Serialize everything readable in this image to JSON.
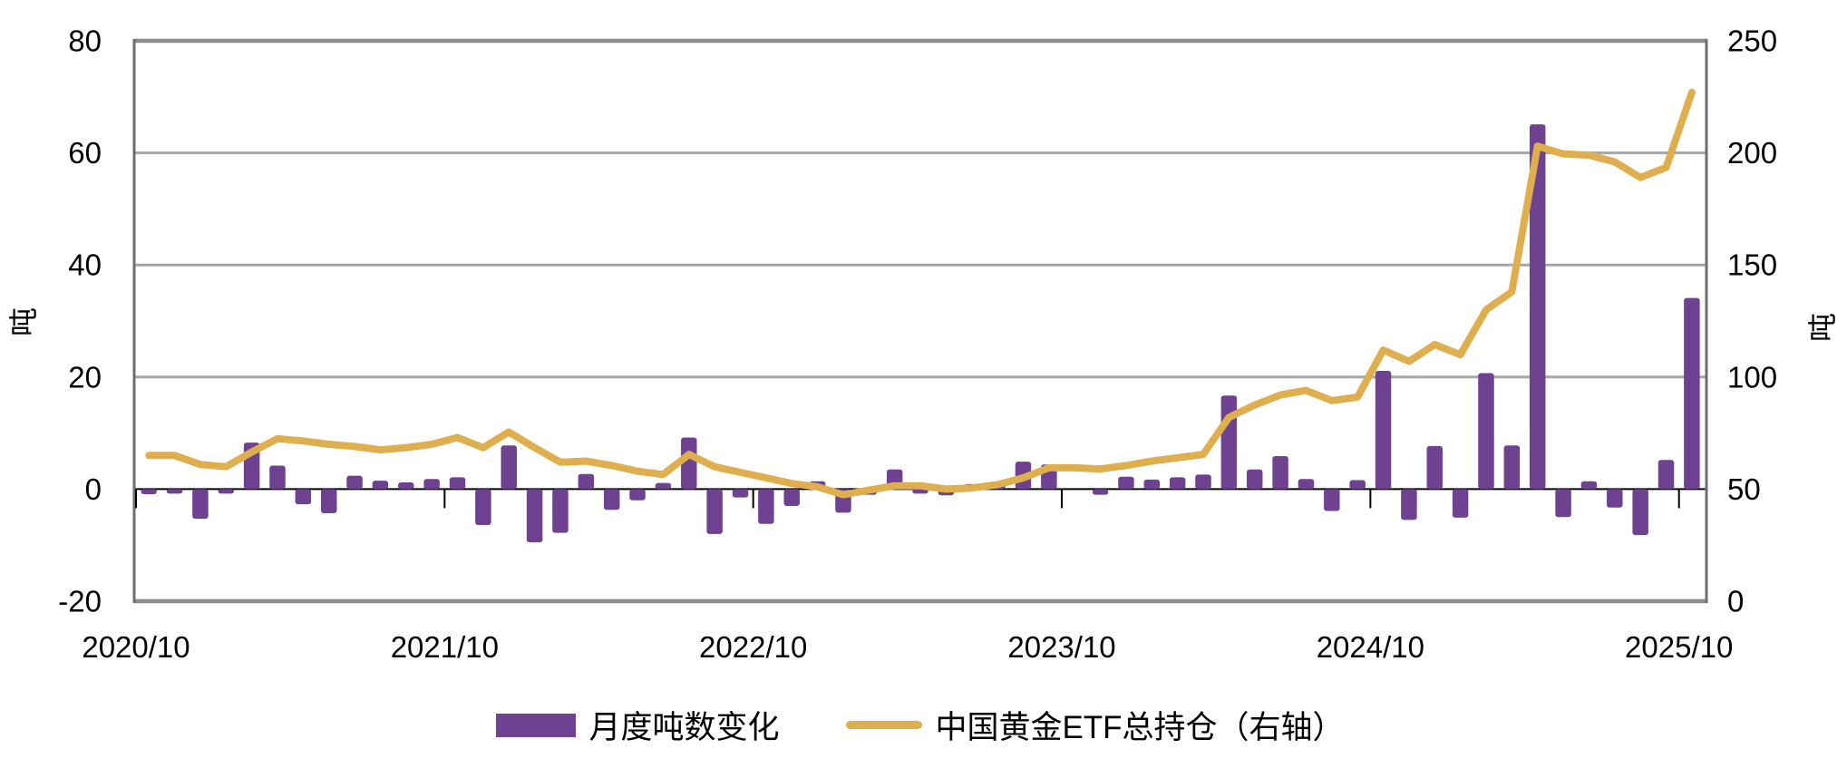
{
  "chart_data": {
    "type": "combo-bar-line",
    "categories": [
      "2020/10",
      "2020/11",
      "2020/12",
      "2021/01",
      "2021/02",
      "2021/03",
      "2021/04",
      "2021/05",
      "2021/06",
      "2021/07",
      "2021/08",
      "2021/09",
      "2021/10",
      "2021/11",
      "2021/12",
      "2022/01",
      "2022/02",
      "2022/03",
      "2022/04",
      "2022/05",
      "2022/06",
      "2022/07",
      "2022/08",
      "2022/09",
      "2022/10",
      "2022/11",
      "2022/12",
      "2023/01",
      "2023/02",
      "2023/03",
      "2023/04",
      "2023/05",
      "2023/06",
      "2023/07",
      "2023/08",
      "2023/09",
      "2023/10",
      "2023/11",
      "2023/12",
      "2024/01",
      "2024/02",
      "2024/03",
      "2024/04",
      "2024/05",
      "2024/06",
      "2024/07",
      "2024/08",
      "2024/09",
      "2024/10",
      "2024/11",
      "2024/12",
      "2025/01",
      "2025/02",
      "2025/03",
      "2025/04",
      "2025/05",
      "2025/06",
      "2025/07",
      "2025/08",
      "2025/09",
      "2025/10"
    ],
    "x_tick_labels": [
      "2020/10",
      "2021/10",
      "2022/10",
      "2023/10",
      "2024/10",
      "2025/10"
    ],
    "series": [
      {
        "name": "月度吨数变化",
        "type": "bar",
        "axis": "left",
        "color": "#6f4291",
        "values": [
          -0.9,
          -0.8,
          -5.3,
          -0.8,
          8.3,
          4.2,
          -2.7,
          -4.3,
          2.4,
          1.5,
          1.2,
          1.8,
          2.1,
          -6.4,
          7.8,
          -9.5,
          -7.8,
          2.7,
          -3.7,
          -2.0,
          1.1,
          9.2,
          -8.0,
          -1.5,
          -6.2,
          -3.0,
          1.4,
          -4.2,
          -1.0,
          3.5,
          -0.8,
          -1.1,
          0.9,
          1.3,
          4.9,
          4.4,
          0,
          -1.0,
          2.2,
          1.7,
          2.1,
          2.6,
          16.7,
          3.5,
          5.9,
          1.8,
          -3.9,
          1.6,
          21.1,
          -5.5,
          7.7,
          -5.1,
          20.7,
          7.8,
          65.1,
          -5.0,
          1.4,
          -3.3,
          -8.2,
          5.2,
          34.1
        ]
      },
      {
        "name": "中国黄金ETF总持仓（右轴）",
        "type": "line",
        "axis": "right",
        "color": "#dfae4e",
        "values": [
          65,
          65,
          61,
          60,
          66.5,
          72.5,
          71.5,
          70,
          69,
          67.5,
          68.5,
          70,
          73,
          68.5,
          75.5,
          68.5,
          62,
          62.5,
          60.5,
          58,
          56.5,
          65.5,
          60,
          57.5,
          55,
          52.5,
          51,
          47.5,
          49.5,
          51.5,
          51.5,
          50,
          50.5,
          52,
          55,
          59.5,
          59.5,
          59,
          60.5,
          62.5,
          64,
          65.5,
          82,
          87.5,
          92,
          94,
          89.5,
          91,
          112,
          107,
          114.5,
          110,
          130,
          138,
          203,
          199.5,
          199,
          196,
          189,
          193.5,
          227
        ]
      }
    ],
    "left_axis": {
      "title": "吨",
      "min": -20,
      "max": 80,
      "tick_values": [
        80,
        60,
        40,
        20,
        0,
        -20
      ],
      "tick_labels": [
        "80",
        "60",
        "40",
        "20",
        "0",
        "-20"
      ]
    },
    "right_axis": {
      "title": "吨",
      "min": 0,
      "max": 250,
      "tick_values": [
        250,
        200,
        150,
        100,
        50,
        0
      ],
      "tick_labels": [
        "250",
        "200",
        "150",
        "100",
        "50",
        "0"
      ]
    },
    "grid": true,
    "legend_position": "bottom",
    "colors": {
      "bar": "#6f4291",
      "line": "#dfae4e",
      "gridline": "#a6a6a6",
      "plot_border": "#8c8c8c",
      "zero_line": "#000000",
      "tick_mark": "#000000",
      "text": "#000000",
      "background": "#ffffff"
    }
  }
}
